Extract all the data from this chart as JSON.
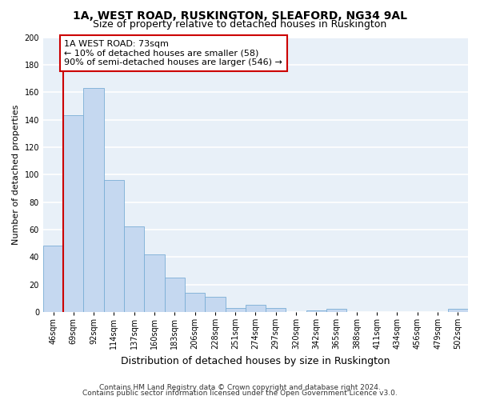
{
  "title": "1A, WEST ROAD, RUSKINGTON, SLEAFORD, NG34 9AL",
  "subtitle": "Size of property relative to detached houses in Ruskington",
  "xlabel": "Distribution of detached houses by size in Ruskington",
  "ylabel": "Number of detached properties",
  "bar_color": "#c5d8f0",
  "bar_edge_color": "#7aaed6",
  "background_color": "#e8f0f8",
  "grid_color": "#ffffff",
  "categories": [
    "46sqm",
    "69sqm",
    "92sqm",
    "114sqm",
    "137sqm",
    "160sqm",
    "183sqm",
    "206sqm",
    "228sqm",
    "251sqm",
    "274sqm",
    "297sqm",
    "320sqm",
    "342sqm",
    "365sqm",
    "388sqm",
    "411sqm",
    "434sqm",
    "456sqm",
    "479sqm",
    "502sqm"
  ],
  "values": [
    48,
    143,
    163,
    96,
    62,
    42,
    25,
    14,
    11,
    3,
    5,
    3,
    0,
    1,
    2,
    0,
    0,
    0,
    0,
    0,
    2
  ],
  "annotation_title": "1A WEST ROAD: 73sqm",
  "annotation_line1": "← 10% of detached houses are smaller (58)",
  "annotation_line2": "90% of semi-detached houses are larger (546) →",
  "annotation_box_color": "#ffffff",
  "annotation_box_edge_color": "#cc0000",
  "vline_color": "#cc0000",
  "vline_x": 0.5,
  "ylim": [
    0,
    200
  ],
  "yticks": [
    0,
    20,
    40,
    60,
    80,
    100,
    120,
    140,
    160,
    180,
    200
  ],
  "footer1": "Contains HM Land Registry data © Crown copyright and database right 2024.",
  "footer2": "Contains public sector information licensed under the Open Government Licence v3.0.",
  "title_fontsize": 10,
  "subtitle_fontsize": 9,
  "xlabel_fontsize": 9,
  "ylabel_fontsize": 8,
  "tick_fontsize": 7,
  "annotation_fontsize": 8,
  "footer_fontsize": 6.5
}
